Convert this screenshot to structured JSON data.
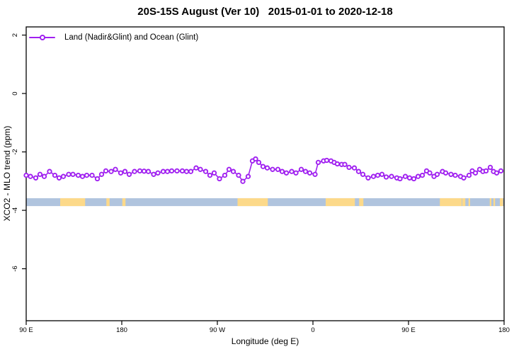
{
  "chart_data": {
    "type": "line",
    "title": "20S-15S August (Ver 10)   2015-01-01 to 2020-12-18",
    "xlabel": "Longitude (deg E)",
    "ylabel": "XCO2 - MLO trend (ppm)",
    "xlim": [
      90,
      540
    ],
    "ylim": [
      -7.78,
      2.28
    ],
    "grid": false,
    "x_ticks": [
      {
        "value": 90,
        "label": "90 E"
      },
      {
        "value": 180,
        "label": "180"
      },
      {
        "value": 270,
        "label": "90 W"
      },
      {
        "value": 360,
        "label": "0"
      },
      {
        "value": 450,
        "label": "90 E"
      },
      {
        "value": 540,
        "label": "180"
      }
    ],
    "y_ticks": [
      {
        "value": 2,
        "label": "2"
      },
      {
        "value": 0,
        "label": "0"
      },
      {
        "value": -2,
        "label": "-2"
      },
      {
        "value": -4,
        "label": "-4"
      },
      {
        "value": -6,
        "label": "-6"
      }
    ],
    "legend": {
      "position": "top-left",
      "entries": [
        {
          "label": "Land (Nadir&Glint) and Ocean (Glint)",
          "color": "#A020F0",
          "marker": "open-circle"
        }
      ]
    },
    "series": [
      {
        "name": "Land (Nadir&Glint) and Ocean (Glint)",
        "color": "#A020F0",
        "marker": "open-circle",
        "marker_fill": "#ffffff",
        "points": [
          [
            90,
            -2.8
          ],
          [
            94,
            -2.84
          ],
          [
            99,
            -2.89
          ],
          [
            103,
            -2.77
          ],
          [
            107,
            -2.84
          ],
          [
            112,
            -2.67
          ],
          [
            117,
            -2.8
          ],
          [
            121,
            -2.89
          ],
          [
            125,
            -2.84
          ],
          [
            130,
            -2.77
          ],
          [
            134,
            -2.77
          ],
          [
            139,
            -2.8
          ],
          [
            143,
            -2.84
          ],
          [
            147,
            -2.8
          ],
          [
            152,
            -2.8
          ],
          [
            157,
            -2.92
          ],
          [
            161,
            -2.77
          ],
          [
            165,
            -2.65
          ],
          [
            170,
            -2.67
          ],
          [
            174,
            -2.6
          ],
          [
            179,
            -2.72
          ],
          [
            183,
            -2.67
          ],
          [
            187,
            -2.77
          ],
          [
            192,
            -2.67
          ],
          [
            197,
            -2.65
          ],
          [
            201,
            -2.66
          ],
          [
            205,
            -2.67
          ],
          [
            210,
            -2.77
          ],
          [
            214,
            -2.72
          ],
          [
            219,
            -2.67
          ],
          [
            223,
            -2.67
          ],
          [
            227,
            -2.65
          ],
          [
            232,
            -2.65
          ],
          [
            237,
            -2.65
          ],
          [
            241,
            -2.67
          ],
          [
            245,
            -2.67
          ],
          [
            250,
            -2.55
          ],
          [
            254,
            -2.6
          ],
          [
            259,
            -2.67
          ],
          [
            263,
            -2.8
          ],
          [
            267,
            -2.72
          ],
          [
            272,
            -2.92
          ],
          [
            277,
            -2.8
          ],
          [
            281,
            -2.6
          ],
          [
            285,
            -2.67
          ],
          [
            290,
            -2.8
          ],
          [
            294,
            -3.01
          ],
          [
            299,
            -2.84
          ],
          [
            303,
            -2.31
          ],
          [
            306,
            -2.24
          ],
          [
            309,
            -2.36
          ],
          [
            313,
            -2.5
          ],
          [
            317,
            -2.55
          ],
          [
            322,
            -2.6
          ],
          [
            327,
            -2.6
          ],
          [
            331,
            -2.67
          ],
          [
            335,
            -2.72
          ],
          [
            340,
            -2.67
          ],
          [
            344,
            -2.72
          ],
          [
            349,
            -2.6
          ],
          [
            353,
            -2.67
          ],
          [
            357,
            -2.72
          ],
          [
            362,
            -2.77
          ],
          [
            365,
            -2.36
          ],
          [
            370,
            -2.31
          ],
          [
            373,
            -2.29
          ],
          [
            377,
            -2.31
          ],
          [
            380,
            -2.36
          ],
          [
            383,
            -2.41
          ],
          [
            387,
            -2.43
          ],
          [
            390,
            -2.43
          ],
          [
            394,
            -2.53
          ],
          [
            399,
            -2.55
          ],
          [
            403,
            -2.67
          ],
          [
            407,
            -2.77
          ],
          [
            412,
            -2.89
          ],
          [
            417,
            -2.84
          ],
          [
            421,
            -2.8
          ],
          [
            425,
            -2.77
          ],
          [
            429,
            -2.86
          ],
          [
            434,
            -2.84
          ],
          [
            439,
            -2.89
          ],
          [
            442,
            -2.92
          ],
          [
            447,
            -2.84
          ],
          [
            451,
            -2.89
          ],
          [
            455,
            -2.92
          ],
          [
            459,
            -2.84
          ],
          [
            463,
            -2.8
          ],
          [
            467,
            -2.65
          ],
          [
            470,
            -2.72
          ],
          [
            474,
            -2.84
          ],
          [
            477,
            -2.77
          ],
          [
            482,
            -2.67
          ],
          [
            485,
            -2.72
          ],
          [
            490,
            -2.77
          ],
          [
            494,
            -2.8
          ],
          [
            499,
            -2.84
          ],
          [
            502,
            -2.89
          ],
          [
            507,
            -2.8
          ],
          [
            510,
            -2.65
          ],
          [
            513,
            -2.72
          ],
          [
            517,
            -2.6
          ],
          [
            520,
            -2.67
          ],
          [
            523,
            -2.65
          ],
          [
            527,
            -2.53
          ],
          [
            530,
            -2.67
          ],
          [
            533,
            -2.72
          ],
          [
            537,
            -2.65
          ]
        ]
      }
    ],
    "land_ocean_band": {
      "value_center": -3.72,
      "value_height": 0.27,
      "ocean_color": "#B0C4DE",
      "land_color": "#FCD98A",
      "land_segments_lon": [
        [
          122,
          145.5
        ],
        [
          165.5,
          168.5
        ],
        [
          180.5,
          183.5
        ],
        [
          289,
          317.5
        ],
        [
          372,
          399.5
        ],
        [
          403.5,
          407.5
        ],
        [
          479.5,
          500
        ],
        [
          500.5,
          503.5
        ],
        [
          506.5,
          508
        ],
        [
          526.5,
          528
        ],
        [
          530,
          531.5
        ],
        [
          536,
          539
        ]
      ]
    }
  }
}
